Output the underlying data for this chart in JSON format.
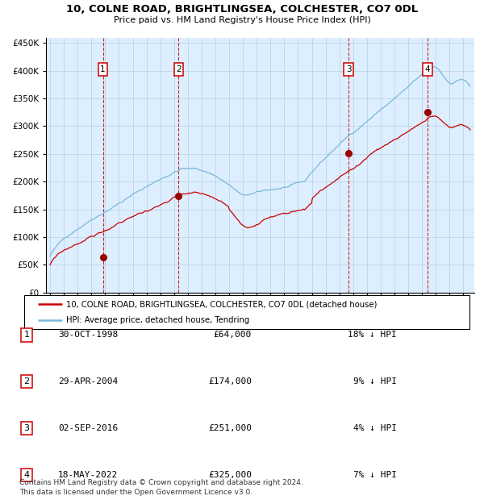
{
  "title1": "10, COLNE ROAD, BRIGHTLINGSEA, COLCHESTER, CO7 0DL",
  "title2": "Price paid vs. HM Land Registry's House Price Index (HPI)",
  "legend_line1": "10, COLNE ROAD, BRIGHTLINGSEA, COLCHESTER, CO7 0DL (detached house)",
  "legend_line2": "HPI: Average price, detached house, Tendring",
  "transactions": [
    {
      "num": 1,
      "x": 1998.83,
      "price": 64000,
      "label": "30-OCT-1998",
      "amount": "£64,000",
      "pct": "18% ↓ HPI"
    },
    {
      "num": 2,
      "x": 2004.33,
      "price": 174000,
      "label": "29-APR-2004",
      "amount": "£174,000",
      "pct": "9% ↓ HPI"
    },
    {
      "num": 3,
      "x": 2016.67,
      "price": 251000,
      "label": "02-SEP-2016",
      "amount": "£251,000",
      "pct": "4% ↓ HPI"
    },
    {
      "num": 4,
      "x": 2022.38,
      "price": 325000,
      "label": "18-MAY-2022",
      "amount": "£325,000",
      "pct": "7% ↓ HPI"
    }
  ],
  "hpi_color": "#7ab8d9",
  "price_color": "#cc0000",
  "dot_color": "#990000",
  "vline_color": "#cc0000",
  "bg_color": "#ddeeff",
  "grid_color": "#b8cfe0",
  "ylim": [
    0,
    460000
  ],
  "xlim_start": 1994.7,
  "xlim_end": 2025.8,
  "footer": "Contains HM Land Registry data © Crown copyright and database right 2024.\nThis data is licensed under the Open Government Licence v3.0.",
  "yticks": [
    0,
    50000,
    100000,
    150000,
    200000,
    250000,
    300000,
    350000,
    400000,
    450000
  ]
}
